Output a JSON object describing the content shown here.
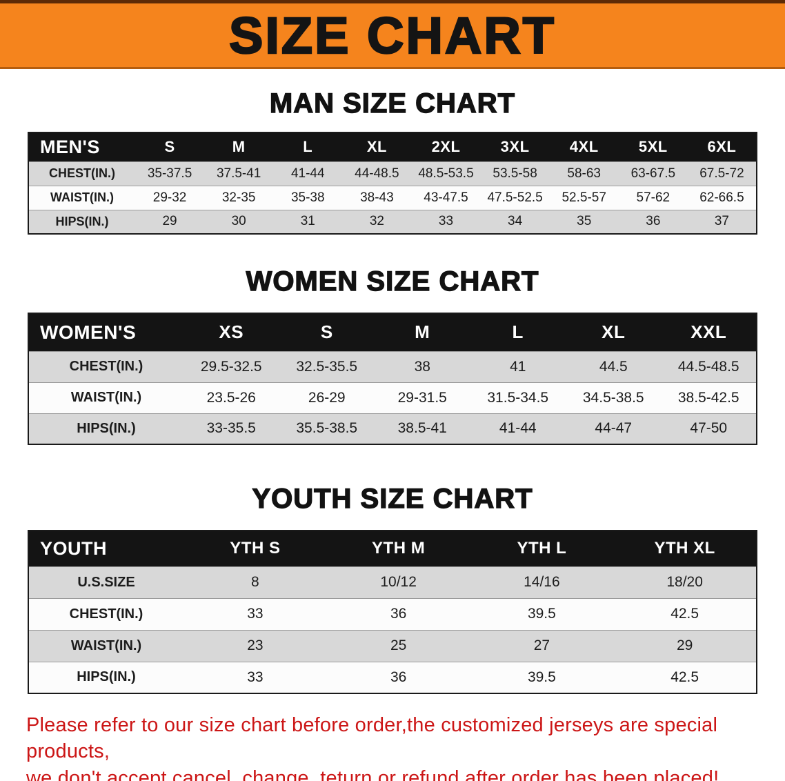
{
  "banner": {
    "title": "SIZE CHART"
  },
  "colors": {
    "banner_bg": "#f5841d",
    "table_header_bg": "#141414",
    "row_gray": "#d8d8d8",
    "footer_red": "#cc1616"
  },
  "sections": {
    "men": {
      "heading": "MAN SIZE CHART",
      "table": {
        "header": [
          "MEN'S",
          "S",
          "M",
          "L",
          "XL",
          "2XL",
          "3XL",
          "4XL",
          "5XL",
          "6XL"
        ],
        "rows": [
          [
            "CHEST(IN.)",
            "35-37.5",
            "37.5-41",
            "41-44",
            "44-48.5",
            "48.5-53.5",
            "53.5-58",
            "58-63",
            "63-67.5",
            "67.5-72"
          ],
          [
            "WAIST(IN.)",
            "29-32",
            "32-35",
            "35-38",
            "38-43",
            "43-47.5",
            "47.5-52.5",
            "52.5-57",
            "57-62",
            "62-66.5"
          ],
          [
            "HIPS(IN.)",
            "29",
            "30",
            "31",
            "32",
            "33",
            "34",
            "35",
            "36",
            "37"
          ]
        ]
      }
    },
    "women": {
      "heading": "WOMEN SIZE CHART",
      "table": {
        "header": [
          "WOMEN'S",
          "XS",
          "S",
          "M",
          "L",
          "XL",
          "XXL"
        ],
        "rows": [
          [
            "CHEST(IN.)",
            "29.5-32.5",
            "32.5-35.5",
            "38",
            "41",
            "44.5",
            "44.5-48.5"
          ],
          [
            "WAIST(IN.)",
            "23.5-26",
            "26-29",
            "29-31.5",
            "31.5-34.5",
            "34.5-38.5",
            "38.5-42.5"
          ],
          [
            "HIPS(IN.)",
            "33-35.5",
            "35.5-38.5",
            "38.5-41",
            "41-44",
            "44-47",
            "47-50"
          ]
        ]
      }
    },
    "youth": {
      "heading": "YOUTH SIZE CHART",
      "table": {
        "header": [
          "YOUTH",
          "YTH S",
          "YTH M",
          "YTH L",
          "YTH XL"
        ],
        "rows": [
          [
            "U.S.SIZE",
            "8",
            "10/12",
            "14/16",
            "18/20"
          ],
          [
            "CHEST(IN.)",
            "33",
            "36",
            "39.5",
            "42.5"
          ],
          [
            "WAIST(IN.)",
            "23",
            "25",
            "27",
            "29"
          ],
          [
            "HIPS(IN.)",
            "33",
            "36",
            "39.5",
            "42.5"
          ]
        ]
      }
    }
  },
  "footer": {
    "line1": "Please refer to our size chart before order,the customized jerseys are special products,",
    "line2": "we don't accept cancel, change, teturn or refund after order has been placed!"
  }
}
